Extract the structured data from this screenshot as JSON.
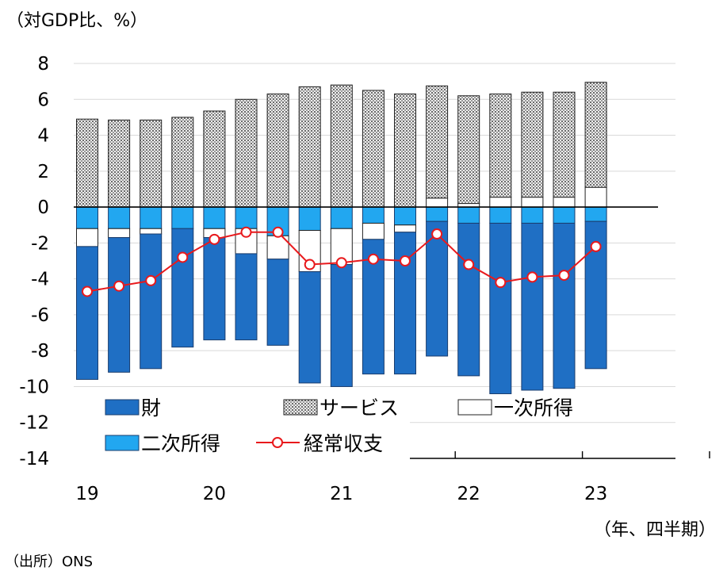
{
  "chart_data": {
    "type": "bar",
    "subtype": "stacked bar with line",
    "ylabel": "（対GDP比、%）",
    "xunit": "（年、四半期）",
    "source": "（出所）ONS",
    "ylim": [
      -14,
      8
    ],
    "yticks": [
      "8",
      "6",
      "4",
      "2",
      "0",
      "-2",
      "-4",
      "-6",
      "-8",
      "-10",
      "-12",
      "-14"
    ],
    "year_labels": [
      "19",
      "20",
      "21",
      "22",
      "23"
    ],
    "categories": [
      "19Q1",
      "19Q2",
      "19Q3",
      "19Q4",
      "20Q1",
      "20Q2",
      "20Q3",
      "20Q4",
      "21Q1",
      "21Q2",
      "21Q3",
      "21Q4",
      "22Q1",
      "22Q2",
      "22Q3",
      "22Q4",
      "23Q1"
    ],
    "grid": true,
    "legend_position": "lower-left",
    "series": [
      {
        "name": "財",
        "kind": "bar",
        "color": "#1f6fc4",
        "values": [
          -7.4,
          -7.5,
          -7.5,
          -6.6,
          -5.7,
          -4.8,
          -4.8,
          -6.2,
          -6.8,
          -7.5,
          -7.9,
          -7.5,
          -8.5,
          -9.5,
          -9.3,
          -9.2,
          -8.2
        ]
      },
      {
        "name": "サービス",
        "kind": "bar",
        "color": "#9a9a9a",
        "values": [
          4.9,
          4.85,
          4.85,
          5.0,
          5.35,
          6.0,
          6.3,
          6.7,
          6.8,
          6.5,
          6.3,
          6.25,
          6.0,
          5.75,
          5.85,
          5.85,
          5.85
        ]
      },
      {
        "name": "一次所得",
        "kind": "bar",
        "color": "#ffffff",
        "values": [
          -1.0,
          -0.5,
          -0.3,
          0,
          -0.5,
          -1.4,
          -1.3,
          -2.3,
          -2.0,
          -0.9,
          -0.4,
          0.5,
          0.2,
          0.55,
          0.55,
          0.55,
          1.1
        ]
      },
      {
        "name": "二次所得",
        "kind": "bar",
        "color": "#22a7f0",
        "values": [
          -1.2,
          -1.2,
          -1.2,
          -1.2,
          -1.2,
          -1.2,
          -1.6,
          -1.3,
          -1.2,
          -0.9,
          -1.0,
          -0.8,
          -0.9,
          -0.9,
          -0.9,
          -0.9,
          -0.8
        ]
      },
      {
        "name": "経常収支",
        "kind": "line",
        "color": "#e8191c",
        "values": [
          -4.7,
          -4.4,
          -4.1,
          -2.8,
          -1.8,
          -1.4,
          -1.4,
          -3.2,
          -3.1,
          -2.9,
          -3.0,
          -1.5,
          -3.2,
          -4.2,
          -3.9,
          -3.8,
          -2.2
        ]
      }
    ]
  }
}
